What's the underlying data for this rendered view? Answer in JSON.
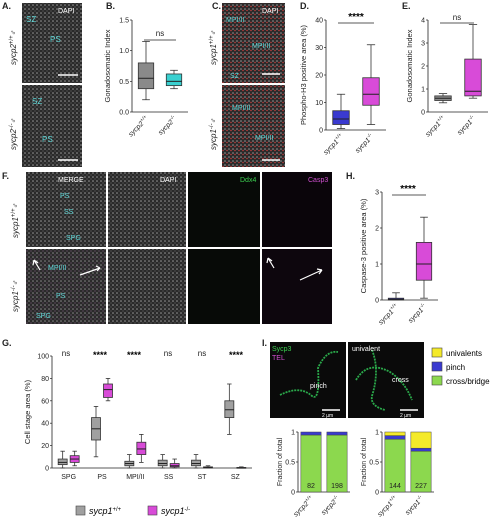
{
  "panels": {
    "A": {
      "letter": "A.",
      "dapi": "DAPI",
      "sz_top": "SZ",
      "ps_top": "PS",
      "sz_bot": "SZ",
      "ps_bot": "PS",
      "g_top": "sycp2",
      "g_top_sup": "+/+",
      "g_bot": "sycp2",
      "g_bot_sup": "-/-",
      "sex": "♂"
    },
    "B": {
      "letter": "B.",
      "ns": "ns"
    },
    "C": {
      "letter": "C.",
      "dapi": "DAPI",
      "l1": "MPI/II",
      "l2": "MPI/II",
      "l3": "SZ",
      "l4": "MPI/II",
      "l5": "MPI/II",
      "g_top": "sycp1",
      "g_top_sup": "+/+",
      "g_bot": "sycp1",
      "g_bot_sup": "-/-",
      "sex": "♂"
    },
    "D": {
      "letter": "D.",
      "sig": "****"
    },
    "E": {
      "letter": "E.",
      "ns": "ns"
    },
    "F": {
      "letter": "F.",
      "merge": "MERGE",
      "dapi": "DAPI",
      "ddx4": "Ddx4",
      "casp3": "Casp3",
      "ss": "SS",
      "ps": "PS",
      "spg": "SPG",
      "mp": "MPI/II",
      "ps2": "PS",
      "spg2": "SPG",
      "g_top": "sycp1",
      "g_top_sup": "+/+",
      "g_bot": "sycp1",
      "g_bot_sup": "-/-",
      "sex": "♂"
    },
    "G": {
      "letter": "G.",
      "ns1": "ns",
      "s2": "****",
      "s3": "****",
      "ns4": "ns",
      "ns5": "ns",
      "s6": "****",
      "legend_1": "sycp1",
      "legend_1_sup": "+/+",
      "legend_2": "sycp1",
      "legend_2_sup": "-/-"
    },
    "H": {
      "letter": "H.",
      "sig": "****"
    },
    "I": {
      "letter": "I.",
      "sycp3": "Sycp3",
      "tel": "TEL",
      "univalent": "univalent",
      "pinch": "pinch",
      "cross": "cross",
      "scale1": "2 µm",
      "scale2": "2 µm",
      "legend": [
        "univalents",
        "pinch",
        "cross/bridge"
      ],
      "ylabel": "Fraction of total",
      "xt1": "sycp2",
      "xt1_sup": "+/+",
      "xt2": "sycp2",
      "xt2_sup": "-/-",
      "xt3": "sycp1",
      "xt3_sup": "+/+",
      "xt4": "sycp1",
      "xt4_sup": "-/-"
    }
  },
  "colors": {
    "magenta": "#d84bd8",
    "grey": "#a0a0a0",
    "blue": "#3a3ad0",
    "green": "#8cd84e",
    "yellow": "#f4ea2a",
    "cyan": "#3ad0d0",
    "darkgreen": "#2aa84a"
  },
  "chart_data": [
    {
      "type": "box",
      "panel": "B",
      "ylabel": "Gonadosomatic Index",
      "ylim": [
        0,
        1.5
      ],
      "yticks": [
        "0.0",
        "0.5",
        "1.0",
        "1.5"
      ],
      "categories": [
        "sycp2 +/+",
        "sycp2 -/-"
      ],
      "boxes": [
        {
          "q1": 0.38,
          "median": 0.55,
          "q3": 0.8,
          "min": 0.2,
          "max": 1.15
        },
        {
          "q1": 0.43,
          "median": 0.5,
          "q3": 0.62,
          "min": 0.38,
          "max": 0.68
        }
      ]
    },
    {
      "type": "box",
      "panel": "D",
      "ylabel": "Phospho-H3 positive area (%)",
      "ylim": [
        0,
        40
      ],
      "yticks": [
        "0",
        "10",
        "20",
        "30",
        "40"
      ],
      "categories": [
        "sycp1 +/+",
        "sycp1 -/-"
      ],
      "boxes": [
        {
          "q1": 2,
          "median": 4,
          "q3": 7,
          "min": 0.5,
          "max": 13
        },
        {
          "q1": 9,
          "median": 13,
          "q3": 19,
          "min": 2,
          "max": 31
        }
      ]
    },
    {
      "type": "box",
      "panel": "E",
      "ylabel": "Gonadosomatic Index",
      "ylim": [
        0,
        4
      ],
      "yticks": [
        "0",
        "1",
        "2",
        "3",
        "4"
      ],
      "categories": [
        "sycp1 +/+",
        "sycp1 -/-"
      ],
      "boxes": [
        {
          "q1": 0.5,
          "median": 0.6,
          "q3": 0.7,
          "min": 0.4,
          "max": 0.8
        },
        {
          "q1": 0.7,
          "median": 0.9,
          "q3": 2.3,
          "min": 0.6,
          "max": 3.8
        }
      ]
    },
    {
      "type": "box",
      "panel": "H",
      "ylabel": "Caspase-3 positive area (%)",
      "ylim": [
        0,
        3
      ],
      "yticks": [
        "0",
        "1",
        "2",
        "3"
      ],
      "categories": [
        "sycp1 +/+",
        "sycp1 -/-"
      ],
      "boxes": [
        {
          "q1": 0.0,
          "median": 0.02,
          "q3": 0.05,
          "min": 0.0,
          "max": 0.2
        },
        {
          "q1": 0.55,
          "median": 1.0,
          "q3": 1.6,
          "min": 0.05,
          "max": 2.3
        }
      ]
    },
    {
      "type": "box",
      "panel": "G",
      "ylabel": "Cell stage area (%)",
      "ylim": [
        0,
        100
      ],
      "yticks": [
        "0",
        "20",
        "40",
        "60",
        "80",
        "100"
      ],
      "categories": [
        "SPG",
        "PS",
        "MPI/II",
        "SS",
        "ST",
        "SZ"
      ],
      "series": [
        {
          "name": "sycp1 +/+",
          "boxes": [
            {
              "q1": 3,
              "median": 5,
              "q3": 8,
              "min": 0,
              "max": 15
            },
            {
              "q1": 25,
              "median": 35,
              "q3": 45,
              "min": 10,
              "max": 55
            },
            {
              "q1": 2,
              "median": 4,
              "q3": 6,
              "min": 0,
              "max": 12
            },
            {
              "q1": 2,
              "median": 4,
              "q3": 7,
              "min": 0,
              "max": 12
            },
            {
              "q1": 2,
              "median": 4,
              "q3": 7,
              "min": 0,
              "max": 12
            },
            {
              "q1": 45,
              "median": 52,
              "q3": 60,
              "min": 30,
              "max": 75
            }
          ]
        },
        {
          "name": "sycp1 -/-",
          "boxes": [
            {
              "q1": 5,
              "median": 8,
              "q3": 11,
              "min": 2,
              "max": 15
            },
            {
              "q1": 63,
              "median": 70,
              "q3": 75,
              "min": 60,
              "max": 80
            },
            {
              "q1": 12,
              "median": 17,
              "q3": 23,
              "min": 5,
              "max": 30
            },
            {
              "q1": 1,
              "median": 2,
              "q3": 4,
              "min": 0,
              "max": 8
            },
            {
              "q1": 0,
              "median": 0.5,
              "q3": 1,
              "min": 0,
              "max": 2
            },
            {
              "q1": 0,
              "median": 0,
              "q3": 0.5,
              "min": 0,
              "max": 1
            }
          ]
        }
      ]
    },
    {
      "type": "stacked-bar",
      "panel": "I",
      "ylabel": "Fraction of total",
      "ylim": [
        0,
        1
      ],
      "yticks": [
        "0",
        "0.5",
        "1"
      ],
      "categories": [
        "sycp2 +/+",
        "sycp2 -/-",
        "sycp1 +/+",
        "sycp1 -/-"
      ],
      "counts": [
        "82",
        "198",
        "144",
        "227"
      ],
      "series": [
        {
          "name": "cross/bridge",
          "values": [
            0.95,
            0.95,
            0.88,
            0.68
          ]
        },
        {
          "name": "pinch",
          "values": [
            0.05,
            0.05,
            0.06,
            0.05
          ]
        },
        {
          "name": "univalents",
          "values": [
            0.0,
            0.0,
            0.06,
            0.27
          ]
        }
      ]
    }
  ]
}
